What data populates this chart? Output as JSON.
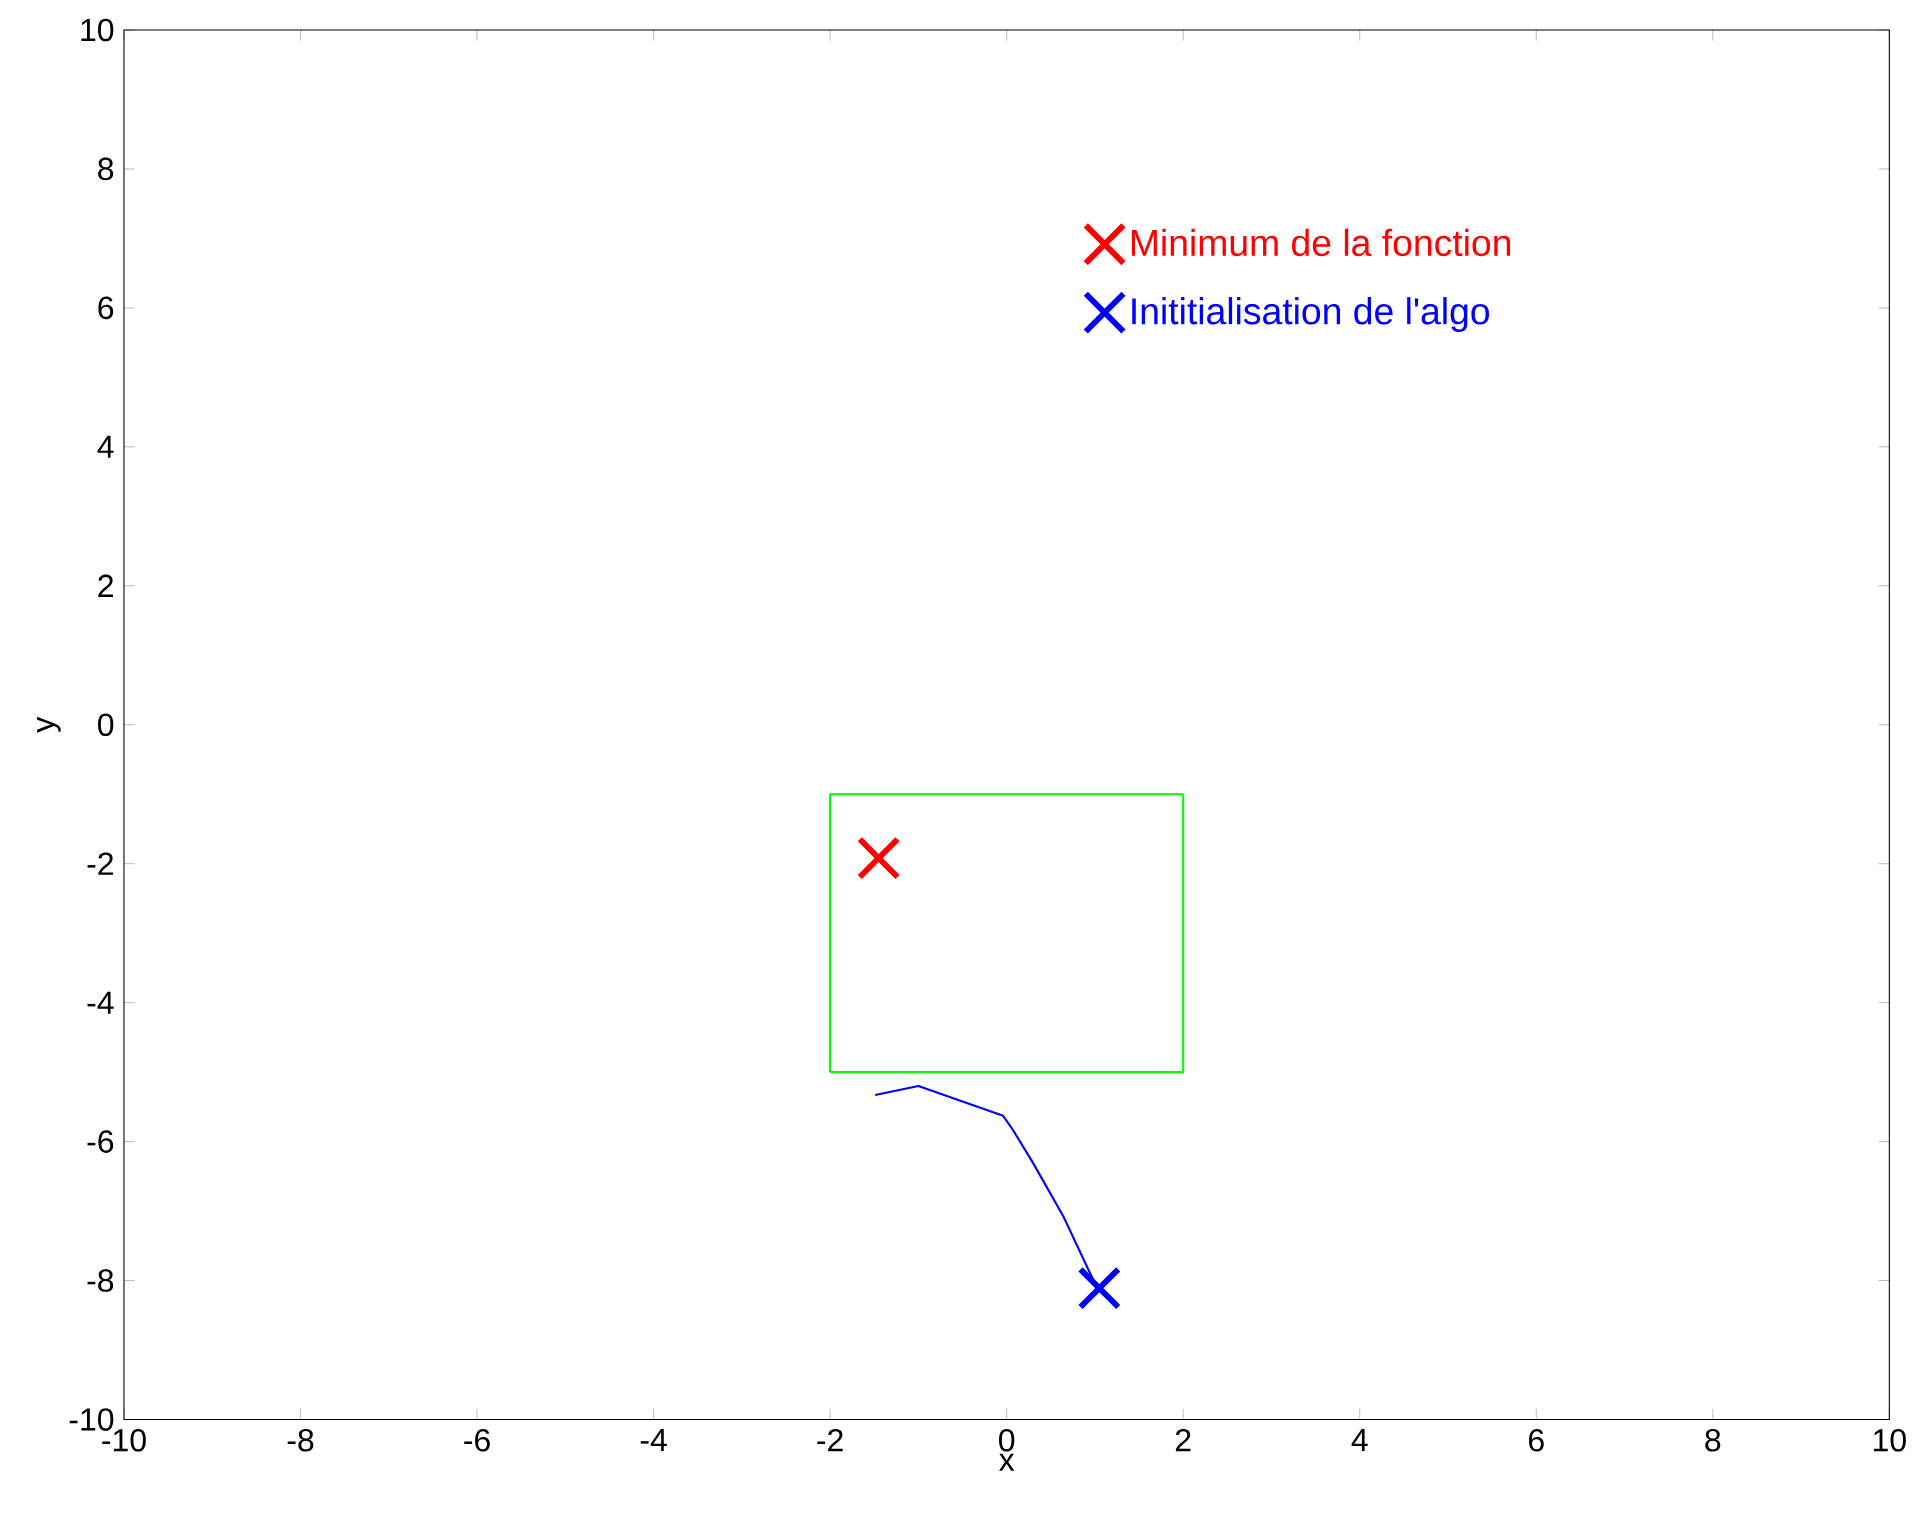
{
  "chart_data": {
    "type": "scatter",
    "xlabel": "x",
    "ylabel": "y",
    "xlim": [
      -10,
      10
    ],
    "ylim": [
      -10,
      10
    ],
    "xticks": [
      -10,
      -8,
      -6,
      -4,
      -2,
      0,
      2,
      4,
      6,
      8,
      10
    ],
    "yticks": [
      -10,
      -8,
      -6,
      -4,
      -2,
      0,
      2,
      4,
      6,
      8,
      10
    ],
    "grid": false,
    "legend": "top right",
    "marker": "cross",
    "series": [
      {
        "name": "Minimum de la fonction",
        "color": "#ff0000",
        "x": [
          -1.45
        ],
        "values": [
          -1.92
        ]
      },
      {
        "name": "Inititialisation de l'algo",
        "color": "#0000ff",
        "x": [
          1.05
        ],
        "values": [
          -8.11
        ]
      },
      {
        "type": "line",
        "marker": "none",
        "color": "#00ff00",
        "x": [
          -2,
          -2,
          2
        ],
        "values": [
          -5,
          -1,
          -1
        ]
      },
      {
        "type": "line",
        "marker": "none",
        "color": "#00ff00",
        "x": [
          -2,
          2,
          2
        ],
        "values": [
          -5,
          -5,
          -1
        ]
      },
      {
        "type": "line",
        "marker": "none",
        "color": "#0000ff",
        "x": [
          -1.49,
          -1.0,
          -0.04,
          0.07,
          0.3,
          0.64,
          0.98
        ],
        "values": [
          -5.33,
          -5.2,
          -5.63,
          -5.83,
          -6.31,
          -7.07,
          -7.99
        ]
      }
    ]
  }
}
